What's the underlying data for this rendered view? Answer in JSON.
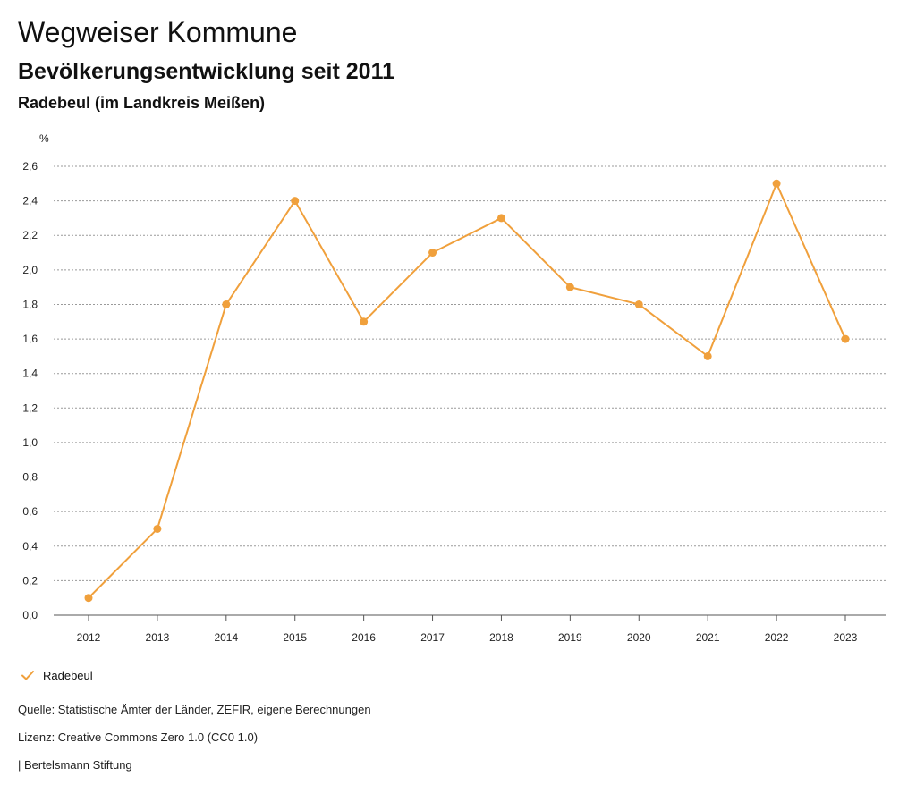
{
  "header": {
    "title": "Wegweiser Kommune",
    "subtitle": "Bevölkerungsentwicklung seit 2011",
    "region": "Radebeul (im Landkreis Meißen)"
  },
  "chart_data": {
    "type": "line",
    "title": "Bevölkerungsentwicklung seit 2011",
    "xlabel": "",
    "ylabel": "%",
    "ylim": [
      0,
      2.6
    ],
    "yticks": [
      "0,0",
      "0,2",
      "0,4",
      "0,6",
      "0,8",
      "1,0",
      "1,2",
      "1,4",
      "1,6",
      "1,8",
      "2,0",
      "2,2",
      "2,4",
      "2,6"
    ],
    "categories": [
      "2012",
      "2013",
      "2014",
      "2015",
      "2016",
      "2017",
      "2018",
      "2019",
      "2020",
      "2021",
      "2022",
      "2023"
    ],
    "series": [
      {
        "name": "Radebeul",
        "values": [
          0.1,
          0.5,
          1.8,
          2.4,
          1.7,
          2.1,
          2.3,
          1.9,
          1.8,
          1.5,
          2.5,
          1.6
        ]
      }
    ],
    "grid": true,
    "legend": "bottom-left"
  },
  "colors": {
    "series": "#f0a03c",
    "grid": "#9a9a9a",
    "axis": "#555555"
  },
  "legend": {
    "label": "Radebeul",
    "icon": "check-icon"
  },
  "footer": {
    "source": "Quelle: Statistische Ämter der Länder, ZEFIR, eigene Berechnungen",
    "license": "Lizenz: Creative Commons Zero 1.0 (CC0 1.0)",
    "publisher": "| Bertelsmann Stiftung"
  }
}
